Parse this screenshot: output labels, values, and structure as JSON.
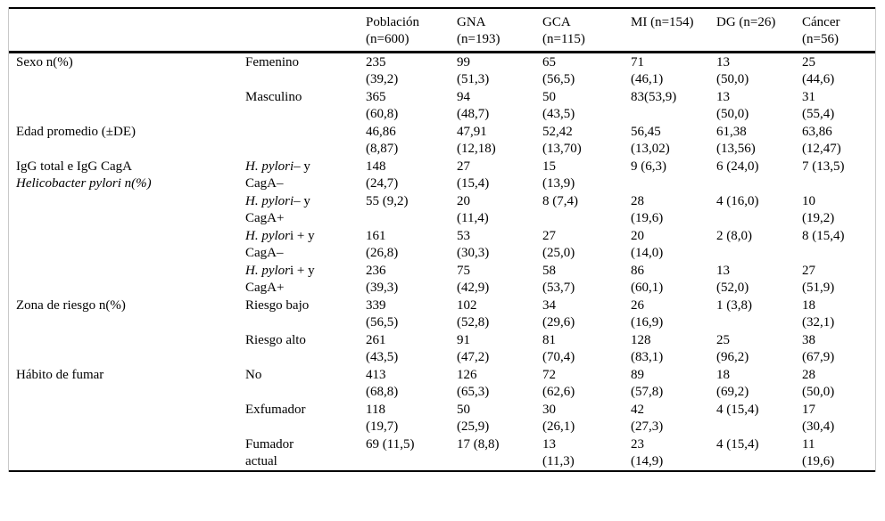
{
  "page": {
    "background": "#ffffff",
    "rule_color": "#000000",
    "frame_border_color": "#c9c9c9",
    "text_color": "#000000"
  },
  "chart_data": {
    "type": "table",
    "columns": [
      "",
      "",
      "Población (n=600)",
      "GNA (n=193)",
      "GCA (n=115)",
      "MI (n=154)",
      "DG (n=26)",
      "Cáncer (n=56)"
    ]
  },
  "table": {
    "headers": [
      "",
      "",
      "Población\n(n=600)",
      "GNA\n(n=193)",
      "GCA\n(n=115)",
      "MI (n=154)",
      "DG (n=26)",
      "Cáncer\n(n=56)"
    ],
    "groups": [
      {
        "label": "Sexo n(%)",
        "label_italic": "",
        "rows": [
          {
            "sublabel": {
              "italic": "",
              "text": "Femenino"
            },
            "values": [
              "235\n(39,2)",
              "99\n(51,3)",
              "65\n(56,5)",
              "71\n(46,1)",
              "13\n(50,0)",
              "25\n(44,6)"
            ]
          },
          {
            "sublabel": {
              "italic": "",
              "text": "Masculino"
            },
            "values": [
              "365\n(60,8)",
              "94\n(48,7)",
              "50\n(43,5)",
              "83(53,9)",
              "13\n(50,0)",
              "31\n(55,4)"
            ]
          }
        ]
      },
      {
        "label": "Edad promedio (±DE)",
        "label_italic": "",
        "rows": [
          {
            "sublabel": {
              "italic": "",
              "text": ""
            },
            "values": [
              "46,86\n(8,87)",
              "47,91\n(12,18)",
              "52,42\n(13,70)",
              "56,45\n(13,02)",
              "61,38\n(13,56)",
              "63,86\n(12,47)"
            ]
          }
        ]
      },
      {
        "label": "IgG total e IgG CagA",
        "label_italic": "Helicobacter pylori n(%)",
        "rows": [
          {
            "sublabel": {
              "italic": "H. pylori",
              "text": "– y\nCagA–"
            },
            "values": [
              "148\n(24,7)",
              "27\n(15,4)",
              "15\n(13,9)",
              "9 (6,3)",
              "6 (24,0)",
              "7 (13,5)"
            ]
          },
          {
            "sublabel": {
              "italic": "H. pylori",
              "text": "– y\nCagA+"
            },
            "values": [
              "55 (9,2)",
              "20\n(11,4)",
              "8 (7,4)",
              "28\n(19,6)",
              "4 (16,0)",
              "10\n(19,2)"
            ]
          },
          {
            "sublabel": {
              "italic": "H. pylor",
              "text": "i + y\nCagA–"
            },
            "values": [
              "161\n(26,8)",
              "53\n(30,3)",
              "27\n(25,0)",
              "20\n(14,0)",
              "2 (8,0)",
              "8 (15,4)"
            ]
          },
          {
            "sublabel": {
              "italic": "H. pylor",
              "text": "i + y\nCagA+"
            },
            "values": [
              "236\n(39,3)",
              "75\n(42,9)",
              "58\n(53,7)",
              "86\n(60,1)",
              "13\n(52,0)",
              "27\n(51,9)"
            ]
          }
        ]
      },
      {
        "label": "Zona de riesgo n(%)",
        "label_italic": "",
        "rows": [
          {
            "sublabel": {
              "italic": "",
              "text": "Riesgo bajo"
            },
            "values": [
              "339\n(56,5)",
              "102\n(52,8)",
              "34\n(29,6)",
              "26\n(16,9)",
              "1 (3,8)",
              "18\n(32,1)"
            ]
          },
          {
            "sublabel": {
              "italic": "",
              "text": "Riesgo alto"
            },
            "values": [
              "261\n(43,5)",
              "91\n(47,2)",
              "81\n(70,4)",
              "128\n(83,1)",
              "25\n(96,2)",
              "38\n(67,9)"
            ]
          }
        ]
      },
      {
        "label": "Hábito de fumar",
        "label_italic": "",
        "rows": [
          {
            "sublabel": {
              "italic": "",
              "text": "No"
            },
            "values": [
              "413\n(68,8)",
              "126\n(65,3)",
              "72\n(62,6)",
              "89\n(57,8)",
              "18\n(69,2)",
              "28\n(50,0)"
            ]
          },
          {
            "sublabel": {
              "italic": "",
              "text": "Exfumador"
            },
            "values": [
              "118\n(19,7)",
              "50\n(25,9)",
              "30\n(26,1)",
              "42\n(27,3)",
              "4 (15,4)",
              "17\n(30,4)"
            ]
          },
          {
            "sublabel": {
              "italic": "",
              "text": "Fumador\nactual"
            },
            "values": [
              "69 (11,5)",
              "17 (8,8)",
              "13\n(11,3)",
              "23\n(14,9)",
              "4 (15,4)",
              "11\n(19,6)"
            ]
          }
        ]
      }
    ]
  }
}
